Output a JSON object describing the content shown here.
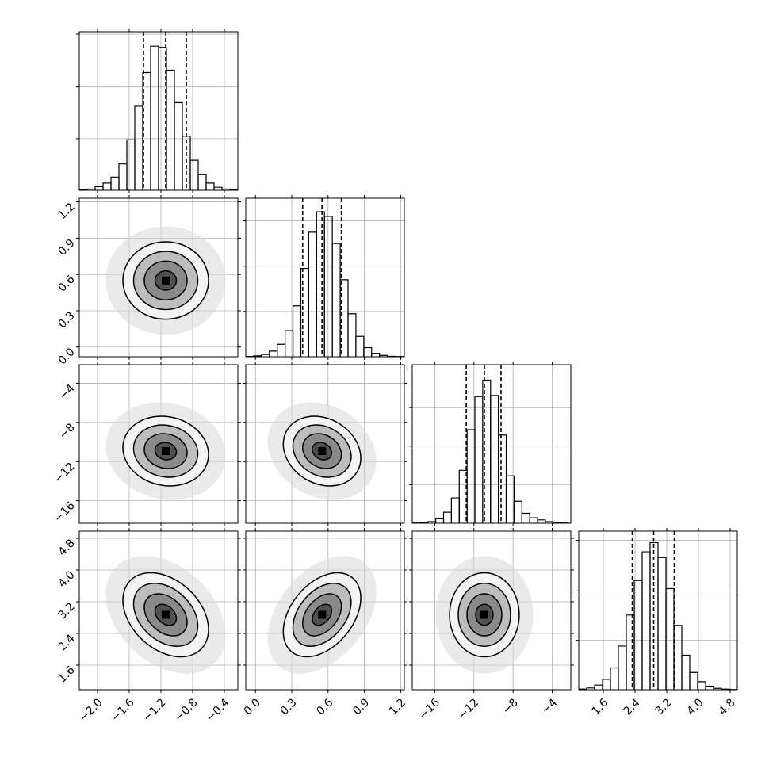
{
  "chart_data": {
    "type": "corner",
    "contour_levels": [
      0.5,
      1,
      1.5,
      2
    ],
    "parameters": [
      {
        "xlim": [
          -2.23,
          -0.23
        ],
        "ticks": [
          {
            "value": -2.0,
            "label": "−2.0"
          },
          {
            "value": -1.6,
            "label": "−1.6"
          },
          {
            "value": -1.2,
            "label": "−1.2"
          },
          {
            "value": -0.8,
            "label": "−0.8"
          },
          {
            "value": -0.4,
            "label": "−0.4"
          }
        ],
        "bins": [
          -2.23,
          -2.13,
          -2.03,
          -1.93,
          -1.83,
          -1.73,
          -1.63,
          -1.53,
          -1.43,
          -1.33,
          -1.23,
          -1.13,
          -1.03,
          -0.93,
          -0.83,
          -0.73,
          -0.63,
          -0.53,
          -0.43,
          -0.33,
          -0.23
        ],
        "counts": [
          5,
          10,
          30,
          60,
          110,
          220,
          420,
          700,
          980,
          1200,
          1190,
          1000,
          730,
          450,
          250,
          130,
          60,
          25,
          10,
          5
        ],
        "hist_ylim": [
          0,
          1320
        ],
        "hist_yticks": [
          430,
          860,
          1300
        ],
        "quantiles": [
          -1.42,
          -1.14,
          -0.88
        ],
        "sigma": 0.27
      },
      {
        "xlim": [
          -0.08,
          1.23
        ],
        "ticks": [
          {
            "value": 0.0,
            "label": "0.0"
          },
          {
            "value": 0.3,
            "label": "0.3"
          },
          {
            "value": 0.6,
            "label": "0.6"
          },
          {
            "value": 0.9,
            "label": "0.9"
          },
          {
            "value": 1.2,
            "label": "1.2"
          }
        ],
        "bins": [
          -0.08,
          -0.015,
          0.05,
          0.115,
          0.18,
          0.245,
          0.31,
          0.375,
          0.44,
          0.505,
          0.57,
          0.635,
          0.7,
          0.765,
          0.83,
          0.895,
          0.96,
          1.025,
          1.09,
          1.155,
          1.22
        ],
        "counts": [
          3,
          8,
          20,
          50,
          110,
          230,
          450,
          780,
          1100,
          1280,
          1240,
          1000,
          680,
          380,
          180,
          80,
          30,
          12,
          4,
          2
        ],
        "hist_ylim": [
          0,
          1400
        ],
        "hist_yticks": [
          400,
          800,
          1200
        ],
        "quantiles": [
          0.39,
          0.55,
          0.71
        ],
        "sigma": 0.16
      },
      {
        "xlim": [
          -18.3,
          -2.1
        ],
        "ticks": [
          {
            "value": -16,
            "label": "−16"
          },
          {
            "value": -12,
            "label": "−12"
          },
          {
            "value": -8,
            "label": "−8"
          },
          {
            "value": -4,
            "label": "−4"
          }
        ],
        "bins": [
          -18.3,
          -17.5,
          -16.7,
          -15.9,
          -15.1,
          -14.3,
          -13.5,
          -12.7,
          -11.9,
          -11.1,
          -10.3,
          -9.5,
          -8.7,
          -7.9,
          -7.1,
          -6.3,
          -5.5,
          -4.7,
          -3.9,
          -3.1,
          -2.3
        ],
        "counts": [
          2,
          6,
          15,
          40,
          100,
          230,
          480,
          850,
          1150,
          1300,
          1160,
          800,
          430,
          200,
          90,
          50,
          30,
          15,
          5,
          2
        ],
        "hist_ylim": [
          0,
          1440
        ],
        "hist_yticks": [
          350,
          700,
          1050,
          1400
        ],
        "quantiles": [
          -12.78,
          -10.93,
          -9.23
        ],
        "sigma": 1.78
      },
      {
        "xlim": [
          0.98,
          4.98
        ],
        "ticks": [
          {
            "value": 1.6,
            "label": "1.6"
          },
          {
            "value": 2.4,
            "label": "2.4"
          },
          {
            "value": 3.2,
            "label": "3.2"
          },
          {
            "value": 4.0,
            "label": "4.0"
          },
          {
            "value": 4.8,
            "label": "4.8"
          }
        ],
        "bins": [
          0.98,
          1.18,
          1.38,
          1.58,
          1.78,
          1.98,
          2.18,
          2.38,
          2.58,
          2.78,
          2.98,
          3.18,
          3.38,
          3.58,
          3.78,
          3.98,
          4.18,
          4.38,
          4.58,
          4.78,
          4.98
        ],
        "counts": [
          5,
          15,
          40,
          90,
          190,
          380,
          650,
          950,
          1200,
          1280,
          1150,
          880,
          560,
          300,
          150,
          70,
          30,
          12,
          5,
          2
        ],
        "hist_ylim": [
          0,
          1380
        ],
        "hist_yticks": [
          430,
          860,
          1300
        ],
        "quantiles": [
          2.33,
          2.87,
          3.39
        ],
        "sigma": 0.53
      }
    ],
    "correlations": [
      [
        1,
        0,
        -0.1,
        -0.35
      ],
      [
        0,
        1,
        -0.2,
        0.4
      ],
      [
        -0.1,
        -0.2,
        1,
        0
      ],
      [
        -0.35,
        0.4,
        0,
        1
      ]
    ]
  }
}
